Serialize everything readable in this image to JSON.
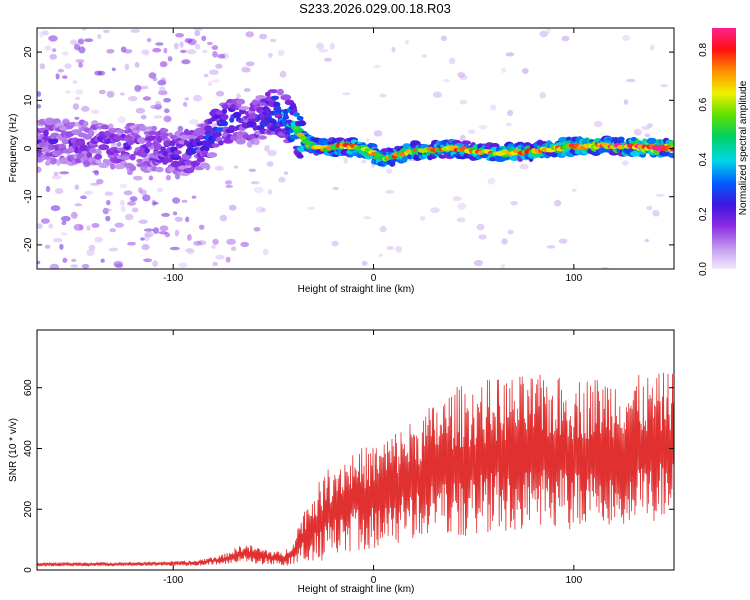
{
  "title": "S233.2026.029.00.18.R03",
  "chart_data": [
    {
      "type": "heatmap",
      "id": "spectrogram",
      "xlabel": "Height of straight line (km)",
      "ylabel": "Frequency (Hz)",
      "xlim": [
        -168,
        150
      ],
      "ylim": [
        -25,
        25
      ],
      "xticks": [
        -100,
        0,
        100
      ],
      "yticks": [
        -20,
        -10,
        0,
        10,
        20
      ],
      "colorbar": {
        "label": "Normalized spectral amplitude",
        "range": [
          0.0,
          0.88
        ],
        "ticks": [
          0.0,
          0.2,
          0.4,
          0.6,
          0.8
        ]
      },
      "ridge": {
        "x": [
          -168,
          -140,
          -110,
          -95,
          -85,
          -78,
          -70,
          -62,
          -55,
          -48,
          -42,
          -38,
          -33,
          -25,
          -15,
          -5,
          5,
          20,
          40,
          60,
          80,
          100,
          120,
          150
        ],
        "freq": [
          1.5,
          1.0,
          0.0,
          -1.0,
          0.5,
          4.0,
          6.5,
          5.0,
          6.5,
          8.0,
          5.5,
          3.5,
          1.0,
          0.0,
          0.5,
          0.0,
          -2.0,
          -0.5,
          0.0,
          -1.0,
          -0.5,
          0.5,
          0.5,
          0.0
        ],
        "amplitude": [
          0.22,
          0.22,
          0.24,
          0.26,
          0.3,
          0.35,
          0.3,
          0.22,
          0.32,
          0.4,
          0.45,
          0.55,
          0.6,
          0.58,
          0.62,
          0.6,
          0.62,
          0.6,
          0.62,
          0.62,
          0.64,
          0.66,
          0.7,
          0.8
        ]
      }
    },
    {
      "type": "line",
      "id": "snr",
      "xlabel": "Height of straight line (km)",
      "ylabel": "SNR (10 * v/v)",
      "xlim": [
        -168,
        150
      ],
      "ylim": [
        0,
        790
      ],
      "xticks": [
        -100,
        0,
        100
      ],
      "yticks": [
        0,
        200,
        400,
        600
      ],
      "color": "#e03030",
      "envelope": {
        "x": [
          -168,
          -120,
          -90,
          -75,
          -65,
          -55,
          -45,
          -40,
          -35,
          -30,
          -25,
          -20,
          -10,
          0,
          10,
          20,
          30,
          40,
          60,
          80,
          100,
          120,
          140,
          150
        ],
        "mean": [
          18,
          20,
          22,
          35,
          55,
          45,
          35,
          60,
          110,
          140,
          170,
          200,
          230,
          240,
          270,
          300,
          330,
          350,
          370,
          380,
          380,
          390,
          400,
          410
        ],
        "amp": [
          6,
          6,
          8,
          15,
          30,
          25,
          20,
          40,
          80,
          110,
          130,
          150,
          150,
          160,
          170,
          180,
          200,
          230,
          240,
          240,
          230,
          230,
          220,
          230
        ]
      }
    }
  ]
}
